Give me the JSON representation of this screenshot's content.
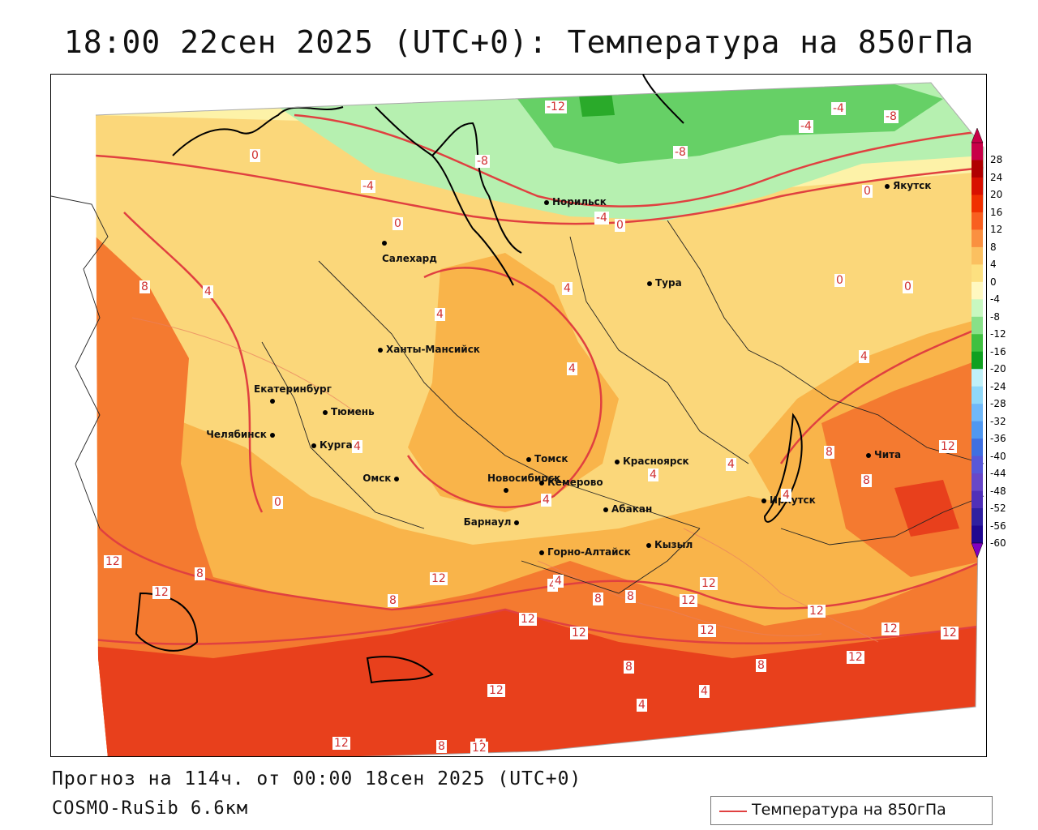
{
  "title": "18:00 22сен 2025 (UTC+0): Температура на 850гПа",
  "forecast_text": "Прогноз на 114ч. от 00:00 18сен 2025 (UTC+0)",
  "model_text": "COSMO-RuSib 6.6км",
  "legend_series_label": "Температура на 850гПа",
  "colors": {
    "isoline": "#e04040",
    "band_high": "#e8401c",
    "band_warm": "#f47a30",
    "band_mid": "#f9b44a",
    "band_mild": "#fbd77a",
    "band_cool": "#fdf2a8",
    "band_cold": "#b6f0b0",
    "band_colder": "#66d066",
    "band_coldest": "#2aaa2a"
  },
  "colorbar": {
    "labels": [
      "28",
      "24",
      "20",
      "16",
      "12",
      "8",
      "4",
      "0",
      "-4",
      "-8",
      "-12",
      "-16",
      "-20",
      "-24",
      "-28",
      "-32",
      "-36",
      "-40",
      "-44",
      "-48",
      "-52",
      "-56",
      "-60"
    ],
    "colors": [
      "#c80048",
      "#b00000",
      "#d81000",
      "#f03000",
      "#f86020",
      "#fa9040",
      "#fbc060",
      "#fde080",
      "#fff8c0",
      "#c8f8c0",
      "#88e088",
      "#40c040",
      "#10a020",
      "#c0f0f8",
      "#90d8f8",
      "#70b8f8",
      "#5098f0",
      "#4070e0",
      "#5858d8",
      "#6848c8",
      "#5030b8",
      "#3020a0",
      "#200890"
    ]
  },
  "cities": [
    {
      "name": "Норильск"
    },
    {
      "name": "Якутск"
    },
    {
      "name": "Салехард"
    },
    {
      "name": "Тура"
    },
    {
      "name": "Ханты-Мансийск"
    },
    {
      "name": "Екатеринбург"
    },
    {
      "name": "Тюмень"
    },
    {
      "name": "Челябинск"
    },
    {
      "name": "Курган"
    },
    {
      "name": "Омск"
    },
    {
      "name": "Новосибирск"
    },
    {
      "name": "Томск"
    },
    {
      "name": "Кемерово"
    },
    {
      "name": "Красноярск"
    },
    {
      "name": "Абакан"
    },
    {
      "name": "Барнаул"
    },
    {
      "name": "Горно-Алтайск"
    },
    {
      "name": "Кызыл"
    },
    {
      "name": "Иркутск"
    },
    {
      "name": "Чита"
    }
  ],
  "isotherm_labels": [
    "-12",
    "-8",
    "-4",
    "-4",
    "-8",
    "-4",
    "-8",
    "0",
    "0",
    "-4",
    "0",
    "0",
    "0",
    "0",
    "8",
    "4",
    "4",
    "4",
    "4",
    "4",
    "4",
    "0",
    "4",
    "4",
    "4",
    "4",
    "8",
    "8",
    "12",
    "12",
    "8",
    "8",
    "12",
    "12",
    "12",
    "12",
    "12",
    "12",
    "12",
    "12",
    "8",
    "4",
    "4",
    "4",
    "4",
    "8",
    "8",
    "12",
    "12",
    "12",
    "12",
    "4",
    "8",
    "8",
    "12",
    "12"
  ]
}
